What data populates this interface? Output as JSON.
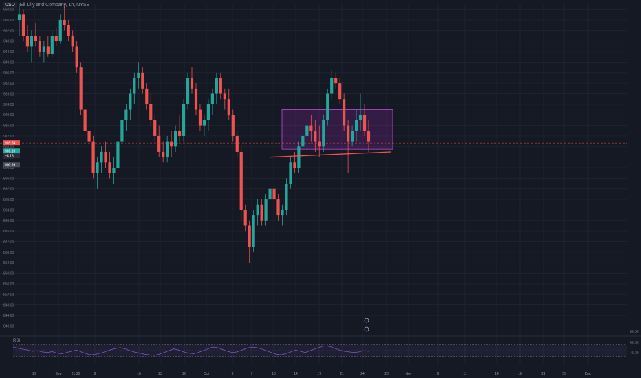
{
  "header": {
    "symbol": "USD",
    "name": "Eli Lilly and Company, 1h, NYSE"
  },
  "colors": {
    "up": "#26a69a",
    "down": "#ef5350",
    "zone": "#9c27b0",
    "rsi": "#7e57c2",
    "bg": "#151924"
  },
  "price_tags": {
    "last": "909.34",
    "a": "906.19",
    "b": "+8.15",
    "c": "900.99"
  },
  "rsi": {
    "label": "RSI",
    "ticks": [
      "80.00",
      "60.00",
      "40.00"
    ]
  },
  "chart_data": {
    "type": "candlestick",
    "title": "",
    "xlabel": "",
    "ylabel": "",
    "ylim": [
      838,
      962
    ],
    "y_ticks": [
      960,
      956,
      952,
      948,
      944,
      940,
      936,
      932,
      928,
      924,
      920,
      916,
      912,
      908,
      904,
      900,
      896,
      892,
      888,
      884,
      880,
      876,
      872,
      868,
      864,
      860,
      856,
      852,
      848,
      844,
      840
    ],
    "x_ticks": [
      "29",
      "Sep",
      "21:30",
      "9",
      "16",
      "23",
      "26",
      "Oct",
      "3",
      "7",
      "10",
      "14",
      "17",
      "21",
      "24",
      "28",
      "Nov",
      "6",
      "11",
      "14",
      "18",
      "21",
      "25",
      "Dec"
    ],
    "series": [
      {
        "values": [
          [
            956,
            962,
            950,
            958
          ],
          [
            958,
            960,
            948,
            950
          ],
          [
            950,
            954,
            944,
            946
          ],
          [
            946,
            952,
            940,
            950
          ],
          [
            950,
            955,
            946,
            948
          ],
          [
            948,
            950,
            942,
            944
          ],
          [
            944,
            948,
            940,
            946
          ],
          [
            946,
            950,
            942,
            943
          ],
          [
            943,
            952,
            942,
            950
          ],
          [
            950,
            953,
            946,
            948
          ],
          [
            948,
            958,
            947,
            956
          ],
          [
            956,
            962,
            952,
            954
          ],
          [
            954,
            956,
            948,
            950
          ],
          [
            950,
            952,
            944,
            946
          ],
          [
            946,
            948,
            936,
            938
          ],
          [
            938,
            940,
            920,
            922
          ],
          [
            922,
            926,
            910,
            914
          ],
          [
            914,
            918,
            906,
            910
          ],
          [
            910,
            912,
            896,
            898
          ],
          [
            898,
            904,
            892,
            902
          ],
          [
            902,
            908,
            898,
            906
          ],
          [
            906,
            910,
            900,
            902
          ],
          [
            902,
            906,
            896,
            898
          ],
          [
            898,
            904,
            894,
            900
          ],
          [
            900,
            912,
            898,
            910
          ],
          [
            910,
            920,
            908,
            918
          ],
          [
            918,
            924,
            914,
            922
          ],
          [
            922,
            930,
            918,
            928
          ],
          [
            928,
            936,
            924,
            934
          ],
          [
            934,
            940,
            930,
            936
          ],
          [
            936,
            938,
            928,
            930
          ],
          [
            930,
            932,
            922,
            924
          ],
          [
            924,
            928,
            916,
            918
          ],
          [
            918,
            920,
            910,
            912
          ],
          [
            912,
            916,
            904,
            906
          ],
          [
            906,
            910,
            902,
            904
          ],
          [
            904,
            912,
            902,
            910
          ],
          [
            910,
            914,
            904,
            908
          ],
          [
            908,
            916,
            906,
            914
          ],
          [
            914,
            920,
            910,
            912
          ],
          [
            912,
            926,
            910,
            924
          ],
          [
            924,
            936,
            922,
            934
          ],
          [
            934,
            938,
            928,
            930
          ],
          [
            930,
            932,
            920,
            922
          ],
          [
            922,
            924,
            914,
            916
          ],
          [
            916,
            920,
            912,
            918
          ],
          [
            918,
            926,
            914,
            924
          ],
          [
            924,
            930,
            920,
            928
          ],
          [
            928,
            936,
            924,
            934
          ],
          [
            934,
            936,
            926,
            928
          ],
          [
            928,
            930,
            922,
            926
          ],
          [
            926,
            930,
            918,
            920
          ],
          [
            920,
            922,
            910,
            912
          ],
          [
            912,
            914,
            904,
            906
          ],
          [
            906,
            908,
            880,
            884
          ],
          [
            884,
            886,
            876,
            878
          ],
          [
            878,
            880,
            864,
            870
          ],
          [
            870,
            884,
            868,
            882
          ],
          [
            882,
            888,
            878,
            886
          ],
          [
            886,
            888,
            878,
            880
          ],
          [
            880,
            890,
            878,
            888
          ],
          [
            888,
            894,
            884,
            892
          ],
          [
            892,
            894,
            886,
            888
          ],
          [
            888,
            890,
            880,
            882
          ],
          [
            882,
            886,
            878,
            884
          ],
          [
            884,
            896,
            882,
            894
          ],
          [
            894,
            904,
            892,
            902
          ],
          [
            902,
            906,
            898,
            900
          ],
          [
            900,
            910,
            898,
            908
          ],
          [
            908,
            914,
            904,
            912
          ],
          [
            912,
            918,
            906,
            916
          ],
          [
            916,
            920,
            910,
            914
          ],
          [
            914,
            918,
            906,
            910
          ],
          [
            910,
            916,
            904,
            908
          ],
          [
            908,
            920,
            906,
            918
          ],
          [
            918,
            930,
            916,
            928
          ],
          [
            928,
            937,
            926,
            934
          ],
          [
            934,
            936,
            930,
            932
          ],
          [
            932,
            934,
            924,
            926
          ],
          [
            926,
            928,
            914,
            916
          ],
          [
            916,
            918,
            898,
            910
          ],
          [
            910,
            916,
            908,
            914
          ],
          [
            914,
            922,
            910,
            918
          ],
          [
            918,
            928,
            914,
            920
          ],
          [
            920,
            924,
            912,
            914
          ],
          [
            914,
            918,
            906,
            910
          ]
        ]
      },
      {
        "name": "RSI",
        "values": [
          62,
          58,
          55,
          52,
          48,
          50,
          46,
          44,
          47,
          42,
          40,
          44,
          48,
          52,
          46,
          40,
          36,
          38,
          42,
          47,
          53,
          57,
          60,
          56,
          50,
          45,
          42,
          38,
          36,
          34,
          38,
          44,
          50,
          56,
          52,
          46,
          42,
          40,
          44,
          50,
          56,
          62,
          60,
          54,
          48,
          44,
          46,
          52,
          58,
          62,
          60,
          56,
          50,
          44,
          38,
          36,
          40,
          46,
          52,
          48,
          44,
          50,
          56,
          62,
          66,
          64,
          58,
          52,
          48,
          46,
          44,
          46,
          50,
          48
        ]
      }
    ],
    "annotations": [
      {
        "type": "rectangle",
        "x_range": [
          "Oct 9",
          "Oct 23"
        ],
        "y_range": [
          907,
          922
        ]
      },
      {
        "type": "trendline",
        "from": [
          "Oct 7",
          904
        ],
        "to": [
          "Oct 23",
          906
        ]
      },
      {
        "type": "horizontal_line",
        "y": 909.34
      }
    ]
  }
}
